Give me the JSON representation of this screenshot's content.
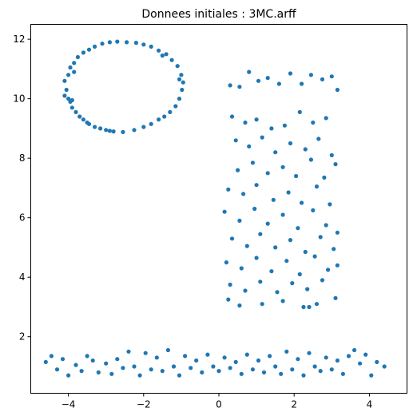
{
  "chart_data": {
    "type": "scatter",
    "title": "Donnees initiales : 3MC.arff",
    "xlabel": "",
    "ylabel": "",
    "xlim": [
      -5.0,
      5.0
    ],
    "ylim": [
      0.1,
      12.5
    ],
    "xticks": [
      -4,
      -2,
      0,
      2,
      4
    ],
    "yticks": [
      2,
      4,
      6,
      8,
      10,
      12
    ],
    "grid": false,
    "point_color": "#1f77b4",
    "series": [
      {
        "points": [
          [
            -4.0,
            10.8
          ],
          [
            -4.1,
            10.6
          ],
          [
            -4.05,
            10.3
          ],
          [
            -4.1,
            10.1
          ],
          [
            -3.95,
            9.9
          ],
          [
            -3.9,
            9.7
          ],
          [
            -3.8,
            9.55
          ],
          [
            -3.7,
            9.4
          ],
          [
            -3.6,
            9.3
          ],
          [
            -3.45,
            9.15
          ],
          [
            -3.3,
            9.05
          ],
          [
            -3.15,
            9.0
          ],
          [
            -3.0,
            8.95
          ],
          [
            -2.8,
            8.9
          ],
          [
            -2.55,
            8.88
          ],
          [
            -3.85,
            11.2
          ],
          [
            -3.75,
            11.4
          ],
          [
            -3.6,
            11.55
          ],
          [
            -3.45,
            11.65
          ],
          [
            -3.3,
            11.75
          ],
          [
            -3.1,
            11.85
          ],
          [
            -2.9,
            11.9
          ],
          [
            -2.7,
            11.92
          ],
          [
            -2.45,
            11.9
          ],
          [
            -2.2,
            11.88
          ],
          [
            -2.0,
            11.82
          ],
          [
            -1.8,
            11.75
          ],
          [
            -1.6,
            11.62
          ],
          [
            -1.4,
            11.5
          ],
          [
            -1.25,
            11.3
          ],
          [
            -1.1,
            11.1
          ],
          [
            -1.0,
            10.8
          ],
          [
            -0.95,
            10.55
          ],
          [
            -0.98,
            10.3
          ],
          [
            -1.05,
            10.0
          ],
          [
            -1.15,
            9.75
          ],
          [
            -1.3,
            9.55
          ],
          [
            -1.45,
            9.4
          ],
          [
            -1.6,
            9.3
          ],
          [
            -1.8,
            9.15
          ],
          [
            -2.0,
            9.05
          ],
          [
            -2.25,
            8.95
          ],
          [
            -4.0,
            10.0
          ],
          [
            -3.9,
            9.95
          ],
          [
            -3.85,
            10.9
          ],
          [
            -3.95,
            11.05
          ],
          [
            -1.05,
            10.65
          ],
          [
            -1.5,
            11.45
          ],
          [
            -3.5,
            9.2
          ],
          [
            -2.9,
            8.92
          ],
          [
            -4.6,
            1.15
          ],
          [
            -4.45,
            1.35
          ],
          [
            -4.3,
            0.9
          ],
          [
            -4.15,
            1.25
          ],
          [
            -4.0,
            0.7
          ],
          [
            -3.8,
            1.05
          ],
          [
            -3.65,
            0.85
          ],
          [
            -3.5,
            1.35
          ],
          [
            -3.35,
            1.2
          ],
          [
            -3.2,
            0.8
          ],
          [
            -3.0,
            1.1
          ],
          [
            -2.85,
            0.75
          ],
          [
            -2.7,
            1.25
          ],
          [
            -2.55,
            0.95
          ],
          [
            -2.4,
            1.5
          ],
          [
            -2.25,
            1.0
          ],
          [
            -2.1,
            0.7
          ],
          [
            -1.95,
            1.45
          ],
          [
            -1.8,
            0.9
          ],
          [
            -1.65,
            1.3
          ],
          [
            -1.5,
            0.85
          ],
          [
            -1.35,
            1.55
          ],
          [
            -1.2,
            1.0
          ],
          [
            -1.05,
            0.7
          ],
          [
            -0.9,
            1.35
          ],
          [
            -0.75,
            0.95
          ],
          [
            -0.6,
            1.2
          ],
          [
            -0.45,
            0.8
          ],
          [
            -0.3,
            1.4
          ],
          [
            -0.15,
            1.0
          ],
          [
            0.0,
            0.85
          ],
          [
            0.15,
            1.3
          ],
          [
            0.3,
            0.95
          ],
          [
            0.45,
            1.15
          ],
          [
            0.6,
            0.75
          ],
          [
            0.75,
            1.4
          ],
          [
            0.9,
            0.9
          ],
          [
            1.05,
            1.2
          ],
          [
            1.2,
            0.8
          ],
          [
            1.35,
            1.35
          ],
          [
            1.5,
            1.0
          ],
          [
            1.65,
            0.75
          ],
          [
            1.8,
            1.5
          ],
          [
            1.95,
            0.9
          ],
          [
            2.1,
            1.25
          ],
          [
            2.25,
            0.7
          ],
          [
            2.4,
            1.45
          ],
          [
            2.55,
            1.0
          ],
          [
            2.7,
            0.85
          ],
          [
            2.85,
            1.3
          ],
          [
            3.0,
            0.9
          ],
          [
            3.15,
            1.2
          ],
          [
            3.3,
            0.75
          ],
          [
            3.45,
            1.35
          ],
          [
            3.6,
            1.55
          ],
          [
            3.75,
            1.1
          ],
          [
            3.9,
            1.4
          ],
          [
            4.05,
            0.7
          ],
          [
            4.2,
            1.15
          ],
          [
            4.4,
            1.0
          ],
          [
            0.3,
            10.45
          ],
          [
            0.55,
            10.4
          ],
          [
            0.8,
            10.9
          ],
          [
            1.05,
            10.6
          ],
          [
            1.3,
            10.7
          ],
          [
            1.6,
            10.5
          ],
          [
            1.9,
            10.85
          ],
          [
            2.2,
            10.5
          ],
          [
            2.45,
            10.8
          ],
          [
            2.75,
            10.65
          ],
          [
            3.0,
            10.75
          ],
          [
            3.15,
            10.3
          ],
          [
            0.35,
            9.4
          ],
          [
            0.7,
            9.2
          ],
          [
            1.0,
            9.3
          ],
          [
            1.4,
            9.0
          ],
          [
            1.75,
            9.1
          ],
          [
            2.15,
            9.55
          ],
          [
            2.5,
            9.2
          ],
          [
            2.85,
            9.35
          ],
          [
            0.45,
            8.6
          ],
          [
            0.8,
            8.4
          ],
          [
            1.15,
            8.7
          ],
          [
            1.5,
            8.2
          ],
          [
            1.9,
            8.5
          ],
          [
            2.3,
            8.3
          ],
          [
            2.65,
            8.65
          ],
          [
            3.0,
            8.1
          ],
          [
            0.5,
            7.6
          ],
          [
            0.9,
            7.85
          ],
          [
            1.3,
            7.5
          ],
          [
            1.7,
            7.7
          ],
          [
            2.05,
            7.4
          ],
          [
            2.45,
            7.95
          ],
          [
            2.8,
            7.35
          ],
          [
            3.1,
            7.8
          ],
          [
            0.25,
            6.95
          ],
          [
            0.65,
            6.8
          ],
          [
            1.0,
            7.1
          ],
          [
            1.45,
            6.6
          ],
          [
            1.85,
            6.85
          ],
          [
            2.2,
            6.5
          ],
          [
            2.6,
            7.05
          ],
          [
            2.95,
            6.45
          ],
          [
            0.15,
            6.2
          ],
          [
            0.55,
            5.9
          ],
          [
            0.95,
            6.3
          ],
          [
            1.3,
            5.8
          ],
          [
            1.7,
            6.1
          ],
          [
            2.1,
            5.65
          ],
          [
            2.5,
            6.25
          ],
          [
            2.85,
            5.75
          ],
          [
            3.15,
            5.5
          ],
          [
            0.35,
            5.3
          ],
          [
            0.75,
            5.05
          ],
          [
            1.1,
            5.45
          ],
          [
            1.5,
            5.0
          ],
          [
            1.9,
            5.25
          ],
          [
            2.3,
            4.85
          ],
          [
            2.7,
            5.35
          ],
          [
            3.05,
            4.95
          ],
          [
            0.2,
            4.5
          ],
          [
            0.6,
            4.3
          ],
          [
            1.0,
            4.65
          ],
          [
            1.4,
            4.2
          ],
          [
            1.8,
            4.55
          ],
          [
            2.15,
            4.1
          ],
          [
            2.55,
            4.7
          ],
          [
            2.9,
            4.25
          ],
          [
            3.15,
            4.4
          ],
          [
            0.3,
            3.75
          ],
          [
            0.7,
            3.55
          ],
          [
            1.1,
            3.85
          ],
          [
            1.55,
            3.5
          ],
          [
            1.95,
            3.8
          ],
          [
            2.35,
            3.6
          ],
          [
            2.75,
            3.9
          ],
          [
            3.1,
            3.3
          ],
          [
            0.25,
            3.25
          ],
          [
            0.55,
            3.05
          ],
          [
            1.15,
            3.1
          ],
          [
            1.7,
            3.2
          ],
          [
            2.25,
            3.0
          ],
          [
            2.4,
            3.0
          ],
          [
            2.6,
            3.1
          ]
        ]
      }
    ]
  }
}
